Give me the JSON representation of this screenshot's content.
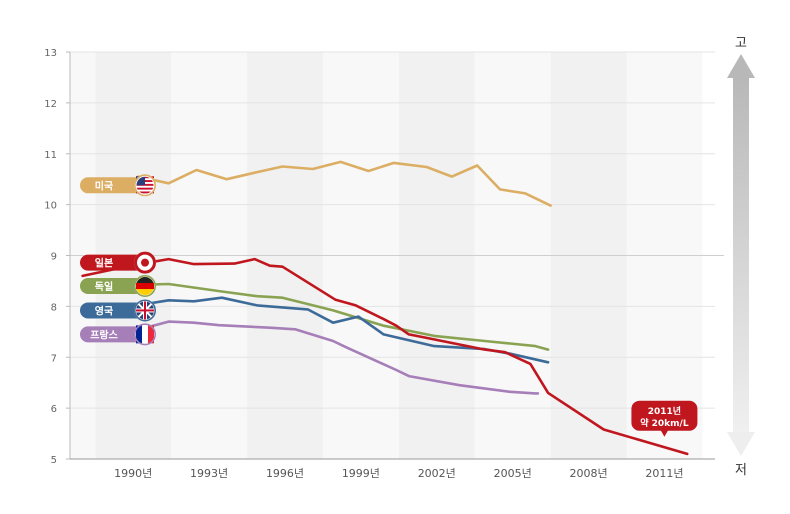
{
  "chart_data": {
    "type": "line",
    "title": "",
    "xlabel": "",
    "ylabel": "",
    "ylim": [
      5,
      13
    ],
    "y_ticks": [
      5,
      6,
      7,
      8,
      9,
      10,
      11,
      12,
      13
    ],
    "x_tick_labels": [
      "1990년",
      "1993년",
      "1996년",
      "1999년",
      "2002년",
      "2005년",
      "2008년",
      "2011년"
    ],
    "x_tick_years": [
      1990,
      1993,
      1996,
      1999,
      2002,
      2005,
      2008,
      2011
    ],
    "xlim": [
      1987.5,
      2013.0
    ],
    "reference_line": 9,
    "series": [
      {
        "name": "미국",
        "color": "#dcae64",
        "flag": "us",
        "points": [
          [
            1990.2,
            10.55
          ],
          [
            1991.4,
            10.42
          ],
          [
            1992.5,
            10.68
          ],
          [
            1993.7,
            10.5
          ],
          [
            1994.9,
            10.64
          ],
          [
            1995.9,
            10.75
          ],
          [
            1997.1,
            10.7
          ],
          [
            1998.2,
            10.84
          ],
          [
            1999.3,
            10.66
          ],
          [
            2000.3,
            10.82
          ],
          [
            2001.6,
            10.74
          ],
          [
            2002.6,
            10.55
          ],
          [
            2003.6,
            10.77
          ],
          [
            2004.5,
            10.3
          ],
          [
            2005.5,
            10.22
          ],
          [
            2006.5,
            9.98
          ]
        ]
      },
      {
        "name": "일본",
        "color": "#c0171f",
        "flag": "jp",
        "points": [
          [
            1988.0,
            8.6
          ],
          [
            1989.9,
            8.8
          ],
          [
            1991.4,
            8.93
          ],
          [
            1992.4,
            8.83
          ],
          [
            1994.0,
            8.84
          ],
          [
            1994.8,
            8.93
          ],
          [
            1995.4,
            8.8
          ],
          [
            1995.9,
            8.78
          ],
          [
            1998.0,
            8.13
          ],
          [
            1998.8,
            8.02
          ],
          [
            1999.9,
            7.75
          ],
          [
            2000.4,
            7.62
          ],
          [
            2000.9,
            7.45
          ],
          [
            2001.6,
            7.38
          ],
          [
            2003.9,
            7.15
          ],
          [
            2004.7,
            7.1
          ],
          [
            2005.7,
            6.87
          ],
          [
            2006.4,
            6.3
          ],
          [
            2008.6,
            5.58
          ],
          [
            2011.9,
            5.1
          ]
        ]
      },
      {
        "name": "독일",
        "color": "#8aa352",
        "flag": "de",
        "points": [
          [
            1989.9,
            8.42
          ],
          [
            1991.4,
            8.44
          ],
          [
            1993.4,
            8.3
          ],
          [
            1994.9,
            8.2
          ],
          [
            1995.9,
            8.17
          ],
          [
            1997.9,
            7.92
          ],
          [
            1999.9,
            7.62
          ],
          [
            2001.9,
            7.42
          ],
          [
            2003.9,
            7.32
          ],
          [
            2004.9,
            7.27
          ],
          [
            2005.9,
            7.22
          ],
          [
            2006.4,
            7.15
          ]
        ]
      },
      {
        "name": "영국",
        "color": "#3d6b99",
        "flag": "uk",
        "points": [
          [
            1989.9,
            8.0
          ],
          [
            1991.4,
            8.12
          ],
          [
            1992.4,
            8.1
          ],
          [
            1993.5,
            8.17
          ],
          [
            1994.9,
            8.02
          ],
          [
            1996.9,
            7.94
          ],
          [
            1997.9,
            7.68
          ],
          [
            1998.9,
            7.8
          ],
          [
            1999.9,
            7.45
          ],
          [
            2001.9,
            7.22
          ],
          [
            2003.9,
            7.16
          ],
          [
            2004.9,
            7.07
          ],
          [
            2006.4,
            6.9
          ]
        ]
      },
      {
        "name": "프랑스",
        "color": "#a67eb8",
        "flag": "fr",
        "points": [
          [
            1989.9,
            7.5
          ],
          [
            1991.4,
            7.7
          ],
          [
            1992.4,
            7.68
          ],
          [
            1993.4,
            7.63
          ],
          [
            1995.4,
            7.58
          ],
          [
            1996.4,
            7.55
          ],
          [
            1997.9,
            7.32
          ],
          [
            1998.4,
            7.2
          ],
          [
            2000.4,
            6.75
          ],
          [
            2000.9,
            6.63
          ],
          [
            2002.9,
            6.45
          ],
          [
            2004.9,
            6.32
          ],
          [
            2005.9,
            6.29
          ],
          [
            2006.0,
            6.29
          ]
        ]
      }
    ],
    "annotation": {
      "line1": "2011년",
      "line2": "약 20km/L",
      "color": "#c0171f",
      "x": 2011.0,
      "y": 5.85
    },
    "legend": {
      "top": "고",
      "bottom": "저"
    }
  }
}
